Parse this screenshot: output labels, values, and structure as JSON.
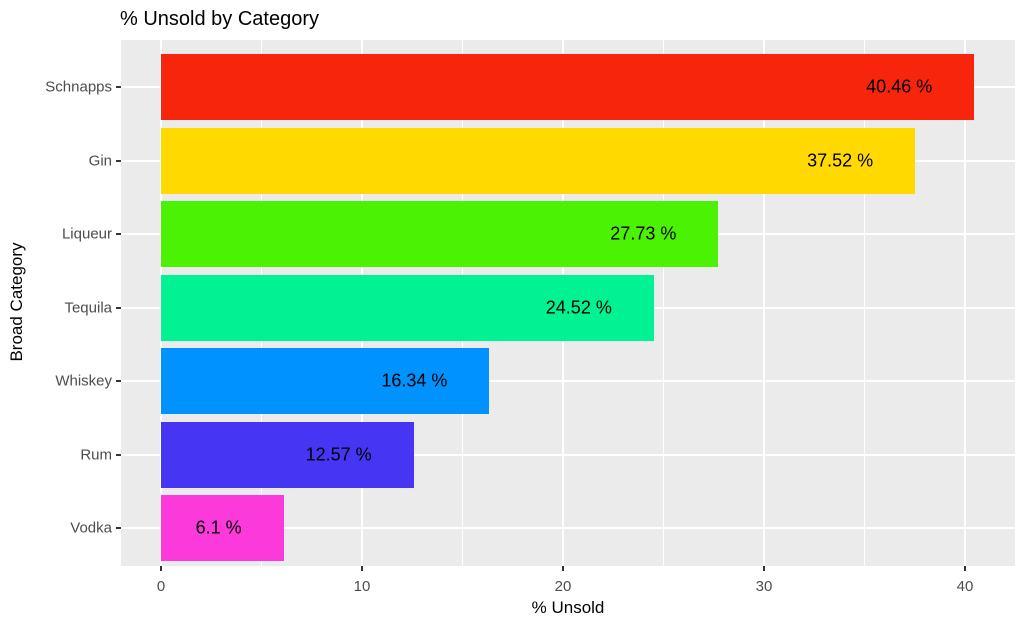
{
  "chart_data": {
    "type": "bar",
    "orientation": "horizontal",
    "title": "% Unsold by Category",
    "xlabel": "% Unsold",
    "ylabel": "Broad Category",
    "categories": [
      "Schnapps",
      "Gin",
      "Liqueur",
      "Tequila",
      "Whiskey",
      "Rum",
      "Vodka"
    ],
    "values": [
      40.46,
      37.52,
      27.73,
      24.52,
      16.34,
      12.57,
      6.1
    ],
    "value_labels": [
      "40.46 %",
      "37.52 %",
      "27.73 %",
      "24.52 %",
      "16.34 %",
      "12.57 %",
      "6.1 %"
    ],
    "bar_colors": [
      "#F8250D",
      "#FFD900",
      "#4CF204",
      "#00F292",
      "#0092FF",
      "#4636F4",
      "#FC39DA"
    ],
    "xlim": [
      -2,
      42.5
    ],
    "x_ticks": [
      0,
      10,
      20,
      30,
      40
    ],
    "x_minor_ticks": [
      5,
      15,
      25,
      35
    ],
    "grid": true,
    "legend": "none",
    "panel_bg": "#EBEBEB",
    "grid_color": "#FFFFFF",
    "axis_text_color": "#4D4D4D",
    "tick_mark_color": "#333333",
    "title_color": "#000000"
  }
}
